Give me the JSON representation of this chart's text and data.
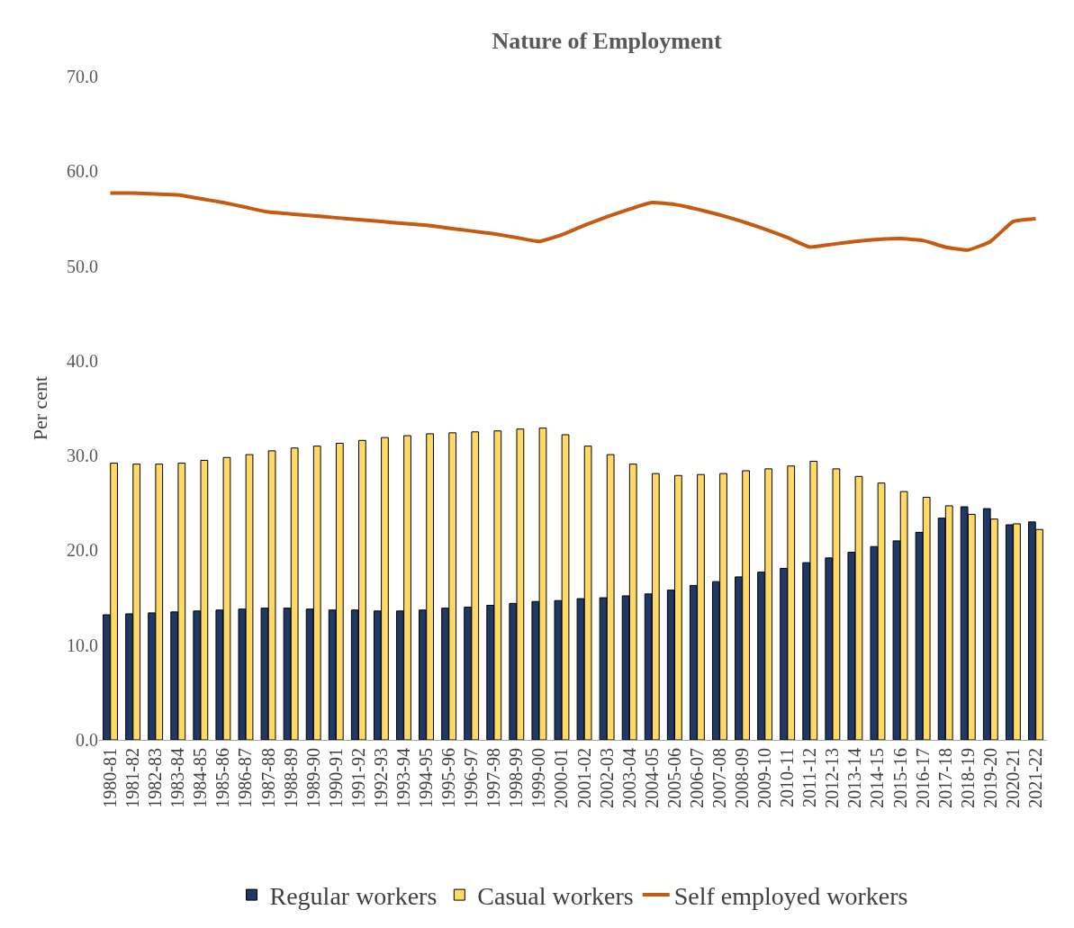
{
  "chart_data": {
    "type": "bar",
    "title": "Nature of Employment",
    "ylabel": "Per cent",
    "categories": [
      "1980-81",
      "1981-82",
      "1982-83",
      "1983-84",
      "1984-85",
      "1985-86",
      "1986-87",
      "1987-88",
      "1988-89",
      "1989-90",
      "1990-91",
      "1991-92",
      "1992-93",
      "1993-94",
      "1994-95",
      "1995-96",
      "1996-97",
      "1997-98",
      "1998-99",
      "1999-00",
      "2000-01",
      "2001-02",
      "2002-03",
      "2003-04",
      "2004-05",
      "2005-06",
      "2006-07",
      "2007-08",
      "2008-09",
      "2009-10",
      "2010-11",
      "2011-12",
      "2012-13",
      "2013-14",
      "2014-15",
      "2015-16",
      "2016-17",
      "2017-18",
      "2018-19",
      "2019-20",
      "2020-21",
      "2021-22"
    ],
    "series": [
      {
        "name": "Regular workers",
        "color": "#203864",
        "values": [
          13.2,
          13.3,
          13.4,
          13.5,
          13.6,
          13.7,
          13.8,
          13.9,
          13.9,
          13.8,
          13.7,
          13.7,
          13.6,
          13.6,
          13.7,
          13.9,
          14.0,
          14.2,
          14.4,
          14.6,
          14.7,
          14.9,
          15.0,
          15.2,
          15.4,
          15.8,
          16.3,
          16.7,
          17.2,
          17.7,
          18.1,
          18.7,
          19.2,
          19.8,
          20.4,
          21.0,
          21.9,
          23.4,
          24.6,
          24.4,
          22.7,
          23.0
        ]
      },
      {
        "name": "Casual workers",
        "color": "#ffd966",
        "values": [
          29.2,
          29.1,
          29.1,
          29.2,
          29.5,
          29.8,
          30.1,
          30.5,
          30.8,
          31.0,
          31.3,
          31.6,
          31.9,
          32.1,
          32.3,
          32.4,
          32.5,
          32.6,
          32.8,
          32.9,
          32.2,
          31.0,
          30.1,
          29.1,
          28.1,
          27.9,
          28.0,
          28.1,
          28.4,
          28.6,
          28.9,
          29.4,
          28.6,
          27.8,
          27.1,
          26.2,
          25.6,
          24.7,
          23.8,
          23.3,
          22.8,
          22.2
        ]
      },
      {
        "name": "Self employed workers",
        "color": "#c55a11",
        "type": "line",
        "values": [
          57.7,
          57.7,
          57.6,
          57.5,
          57.1,
          56.7,
          56.2,
          55.7,
          55.5,
          55.3,
          55.1,
          54.9,
          54.7,
          54.5,
          54.3,
          54.0,
          53.7,
          53.4,
          53.0,
          52.6,
          53.3,
          54.3,
          55.2,
          56.0,
          56.7,
          56.5,
          56.0,
          55.4,
          54.7,
          53.9,
          53.0,
          52.0,
          52.3,
          52.6,
          52.8,
          52.9,
          52.7,
          52.0,
          51.7,
          52.6,
          54.7,
          55.0
        ]
      }
    ],
    "ylim": [
      0,
      70
    ],
    "yticks": [
      {
        "value": 0,
        "label": "0.0"
      },
      {
        "value": 10,
        "label": "10.0"
      },
      {
        "value": 20,
        "label": "20.0"
      },
      {
        "value": 30,
        "label": "30.0"
      },
      {
        "value": 40,
        "label": "40.0"
      },
      {
        "value": 50,
        "label": "50.0"
      },
      {
        "value": 60,
        "label": "60.0"
      },
      {
        "value": 70,
        "label": "70.0"
      }
    ],
    "legend": "bottom",
    "marker": "none",
    "line_style": "solid"
  }
}
